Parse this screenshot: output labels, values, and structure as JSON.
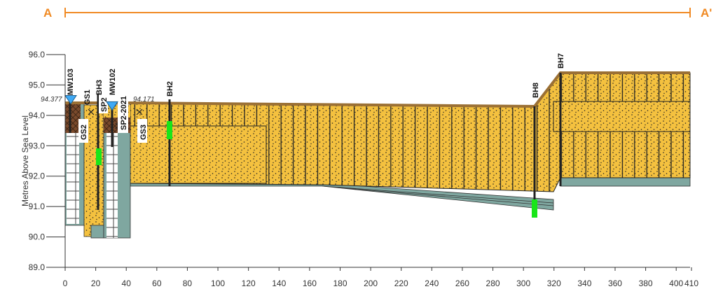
{
  "chart_data": {
    "type": "cross-section",
    "section_labels": [
      "A",
      "A'"
    ],
    "y_label": "Metres Above Sea Level",
    "xlim": [
      0,
      410
    ],
    "ylim": [
      89,
      96
    ],
    "xticks": [
      0,
      20,
      40,
      60,
      80,
      100,
      120,
      140,
      160,
      180,
      200,
      220,
      240,
      260,
      280,
      300,
      320,
      340,
      360,
      380,
      400,
      410
    ],
    "yticks": [
      {
        "value": 89,
        "label": "89.0"
      },
      {
        "value": 90,
        "label": "90.0"
      },
      {
        "value": 91,
        "label": "91.0"
      },
      {
        "value": 92,
        "label": "92.0"
      },
      {
        "value": 93,
        "label": "93.0"
      },
      {
        "value": 94,
        "label": "94.0"
      },
      {
        "value": 95,
        "label": "95.0"
      },
      {
        "value": 96,
        "label": "96.0"
      }
    ],
    "boreholes": [
      "MW103",
      "GS1",
      "BH3",
      "GS2",
      "SP2",
      "MW102",
      "SP2-2021",
      "GS3",
      "BH2",
      "BH8",
      "BH7"
    ],
    "water_levels": [
      94.377,
      94.171
    ]
  }
}
